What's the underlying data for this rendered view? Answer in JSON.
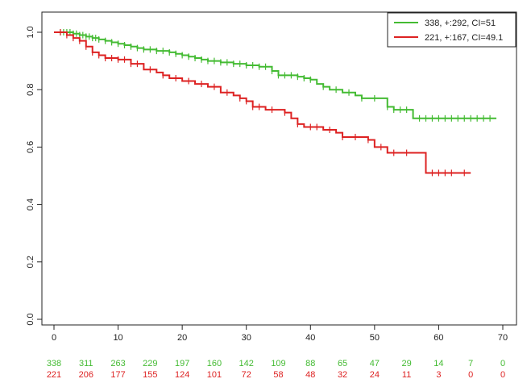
{
  "chart_data": {
    "type": "line",
    "title": "",
    "xlabel": "",
    "ylabel": "",
    "xlim": [
      0,
      70
    ],
    "ylim": [
      0.0,
      1.0
    ],
    "x_ticks": [
      "0",
      "10",
      "20",
      "30",
      "40",
      "50",
      "60",
      "70"
    ],
    "y_ticks": [
      "0.0",
      "0.2",
      "0.4",
      "0.6",
      "0.8",
      "1.0"
    ],
    "grid": false,
    "legend_position": "top-right",
    "series": [
      {
        "name": "338, +:292, CI=51",
        "color": "#44bb33",
        "points": [
          [
            0,
            1.0
          ],
          [
            2,
            1.0
          ],
          [
            3,
            0.995
          ],
          [
            4,
            0.99
          ],
          [
            5,
            0.985
          ],
          [
            6,
            0.98
          ],
          [
            7,
            0.975
          ],
          [
            8,
            0.97
          ],
          [
            9,
            0.965
          ],
          [
            10,
            0.96
          ],
          [
            11,
            0.955
          ],
          [
            12,
            0.95
          ],
          [
            13,
            0.945
          ],
          [
            14,
            0.94
          ],
          [
            16,
            0.935
          ],
          [
            18,
            0.93
          ],
          [
            19,
            0.925
          ],
          [
            20,
            0.92
          ],
          [
            21,
            0.915
          ],
          [
            22,
            0.91
          ],
          [
            23,
            0.905
          ],
          [
            24,
            0.9
          ],
          [
            26,
            0.895
          ],
          [
            28,
            0.89
          ],
          [
            30,
            0.885
          ],
          [
            32,
            0.88
          ],
          [
            34,
            0.865
          ],
          [
            35,
            0.85
          ],
          [
            38,
            0.845
          ],
          [
            39,
            0.84
          ],
          [
            40,
            0.835
          ],
          [
            41,
            0.82
          ],
          [
            42,
            0.81
          ],
          [
            43,
            0.8
          ],
          [
            45,
            0.79
          ],
          [
            47,
            0.78
          ],
          [
            48,
            0.77
          ],
          [
            52,
            0.74
          ],
          [
            53,
            0.73
          ],
          [
            56,
            0.7
          ],
          [
            69,
            0.7
          ]
        ],
        "censor_x": [
          1,
          1.5,
          2,
          2.5,
          3,
          3.5,
          4,
          4.5,
          5,
          5.5,
          6,
          6.5,
          7,
          8,
          9,
          10,
          11,
          12,
          13,
          14,
          15,
          16,
          17,
          18,
          19,
          20,
          21,
          22,
          23,
          24,
          25,
          26,
          27,
          28,
          29,
          30,
          31,
          32,
          33,
          34,
          35,
          36,
          37,
          38,
          39,
          40,
          42,
          44,
          46,
          48,
          50,
          52,
          53,
          54,
          55,
          57,
          58,
          59,
          60,
          61,
          62,
          63,
          64,
          65,
          66,
          67,
          68
        ]
      },
      {
        "name": "221, +:167, CI=49.1",
        "color": "#dd2222",
        "points": [
          [
            0,
            1.0
          ],
          [
            2,
            0.99
          ],
          [
            3,
            0.98
          ],
          [
            4,
            0.97
          ],
          [
            5,
            0.95
          ],
          [
            6,
            0.93
          ],
          [
            7,
            0.92
          ],
          [
            8,
            0.91
          ],
          [
            10,
            0.905
          ],
          [
            12,
            0.89
          ],
          [
            14,
            0.87
          ],
          [
            16,
            0.86
          ],
          [
            17,
            0.85
          ],
          [
            18,
            0.84
          ],
          [
            20,
            0.83
          ],
          [
            22,
            0.82
          ],
          [
            24,
            0.81
          ],
          [
            26,
            0.79
          ],
          [
            28,
            0.78
          ],
          [
            29,
            0.77
          ],
          [
            30,
            0.76
          ],
          [
            31,
            0.74
          ],
          [
            33,
            0.73
          ],
          [
            36,
            0.72
          ],
          [
            37,
            0.7
          ],
          [
            38,
            0.68
          ],
          [
            39,
            0.67
          ],
          [
            42,
            0.66
          ],
          [
            44,
            0.65
          ],
          [
            45,
            0.635
          ],
          [
            49,
            0.625
          ],
          [
            50,
            0.6
          ],
          [
            52,
            0.58
          ],
          [
            57,
            0.58
          ],
          [
            58,
            0.51
          ],
          [
            65,
            0.51
          ]
        ],
        "censor_x": [
          1,
          2,
          3,
          4,
          5,
          6,
          7,
          8,
          9,
          10,
          11,
          12,
          13,
          15,
          17,
          19,
          21,
          23,
          25,
          27,
          29,
          30,
          31,
          32,
          34,
          36,
          38,
          40,
          41,
          43,
          45,
          47,
          49,
          51,
          53,
          55,
          59,
          60,
          61,
          62,
          64
        ]
      }
    ],
    "risk_table": {
      "times": [
        0,
        5,
        10,
        15,
        20,
        25,
        30,
        35,
        40,
        45,
        50,
        55,
        60,
        65,
        70
      ],
      "rows": [
        {
          "color": "#44bb33",
          "values": [
            "338",
            "311",
            "263",
            "229",
            "197",
            "160",
            "142",
            "109",
            "88",
            "65",
            "47",
            "29",
            "14",
            "7",
            "0"
          ]
        },
        {
          "color": "#dd2222",
          "values": [
            "221",
            "206",
            "177",
            "155",
            "124",
            "101",
            "72",
            "58",
            "48",
            "32",
            "24",
            "11",
            "3",
            "0",
            "0"
          ]
        }
      ]
    }
  }
}
